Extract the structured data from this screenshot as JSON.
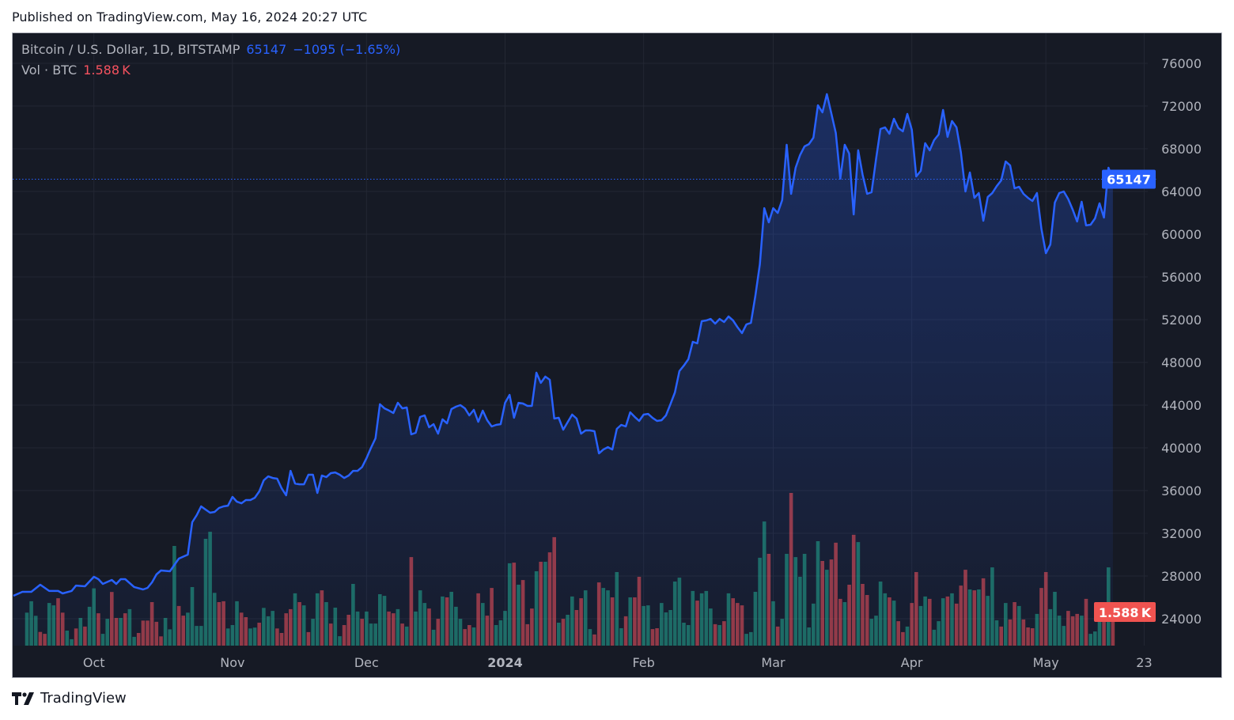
{
  "header": {
    "published": "Published on TradingView.com, May 16, 2024 20:27 UTC"
  },
  "legend": {
    "symbol": "Bitcoin / U.S. Dollar, 1D, BITSTAMP",
    "last": "65147",
    "change": "−1095 (−1.65%)",
    "vol_label": "Vol · BTC",
    "vol_value": "1.588 K"
  },
  "price_label": "65147",
  "vol_badge": "1.588 K",
  "footer": {
    "brand": "TradingView"
  },
  "colors": {
    "line": "#2962ff",
    "up": "#22ab94",
    "down": "#f7525f",
    "bg": "#161a25"
  },
  "chart_data": {
    "type": "line",
    "title": "Bitcoin / U.S. Dollar, 1D, BITSTAMP",
    "x_unit": "days since 2023-09-13",
    "last_price": 65147,
    "ylim": [
      21480,
      78740
    ],
    "y_ticks": [
      24000,
      28000,
      32000,
      36000,
      40000,
      44000,
      48000,
      52000,
      56000,
      60000,
      64000,
      68000,
      72000,
      76000
    ],
    "x_ticks": [
      {
        "day": 18,
        "label": "Oct",
        "bold": false
      },
      {
        "day": 49,
        "label": "Nov",
        "bold": false
      },
      {
        "day": 79,
        "label": "Dec",
        "bold": false
      },
      {
        "day": 110,
        "label": "2024",
        "bold": true
      },
      {
        "day": 141,
        "label": "Feb",
        "bold": false
      },
      {
        "day": 170,
        "label": "Mar",
        "bold": false
      },
      {
        "day": 201,
        "label": "Apr",
        "bold": false
      },
      {
        "day": 231,
        "label": "May",
        "bold": false
      },
      {
        "day": 253,
        "label": "23",
        "bold": false
      }
    ],
    "close": [
      [
        0,
        26150
      ],
      [
        2,
        26520
      ],
      [
        4,
        26520
      ],
      [
        6,
        27190
      ],
      [
        8,
        26600
      ],
      [
        10,
        26600
      ],
      [
        11,
        26370
      ],
      [
        13,
        26600
      ],
      [
        14,
        27110
      ],
      [
        16,
        27040
      ],
      [
        18,
        27930
      ],
      [
        19,
        27710
      ],
      [
        20,
        27260
      ],
      [
        22,
        27630
      ],
      [
        23,
        27260
      ],
      [
        24,
        27710
      ],
      [
        25,
        27710
      ],
      [
        27,
        26970
      ],
      [
        29,
        26740
      ],
      [
        30,
        26890
      ],
      [
        31,
        27410
      ],
      [
        32,
        28150
      ],
      [
        33,
        28520
      ],
      [
        35,
        28450
      ],
      [
        37,
        29630
      ],
      [
        39,
        30000
      ],
      [
        40,
        33040
      ],
      [
        41,
        33700
      ],
      [
        42,
        34520
      ],
      [
        43,
        34220
      ],
      [
        44,
        33930
      ],
      [
        45,
        34000
      ],
      [
        46,
        34370
      ],
      [
        47,
        34520
      ],
      [
        48,
        34590
      ],
      [
        49,
        35410
      ],
      [
        50,
        34960
      ],
      [
        51,
        34810
      ],
      [
        52,
        35110
      ],
      [
        53,
        35110
      ],
      [
        54,
        35330
      ],
      [
        55,
        35930
      ],
      [
        56,
        36960
      ],
      [
        57,
        37330
      ],
      [
        58,
        37180
      ],
      [
        59,
        37110
      ],
      [
        60,
        36220
      ],
      [
        61,
        35560
      ],
      [
        62,
        37850
      ],
      [
        63,
        36660
      ],
      [
        64,
        36590
      ],
      [
        65,
        36590
      ],
      [
        66,
        37480
      ],
      [
        67,
        37480
      ],
      [
        68,
        35780
      ],
      [
        69,
        37410
      ],
      [
        70,
        37260
      ],
      [
        71,
        37630
      ],
      [
        72,
        37700
      ],
      [
        73,
        37480
      ],
      [
        74,
        37180
      ],
      [
        75,
        37410
      ],
      [
        76,
        37850
      ],
      [
        77,
        37850
      ],
      [
        78,
        38200
      ],
      [
        79,
        39040
      ],
      [
        80,
        40000
      ],
      [
        81,
        40890
      ],
      [
        82,
        44080
      ],
      [
        83,
        43700
      ],
      [
        84,
        43500
      ],
      [
        85,
        43260
      ],
      [
        86,
        44220
      ],
      [
        87,
        43700
      ],
      [
        88,
        43780
      ],
      [
        89,
        41260
      ],
      [
        90,
        41410
      ],
      [
        91,
        42890
      ],
      [
        92,
        43040
      ],
      [
        93,
        41930
      ],
      [
        94,
        42220
      ],
      [
        95,
        41330
      ],
      [
        96,
        42670
      ],
      [
        97,
        42300
      ],
      [
        98,
        43630
      ],
      [
        99,
        43850
      ],
      [
        100,
        44000
      ],
      [
        101,
        43700
      ],
      [
        102,
        43040
      ],
      [
        103,
        43560
      ],
      [
        104,
        42440
      ],
      [
        105,
        43480
      ],
      [
        106,
        42590
      ],
      [
        107,
        42000
      ],
      [
        108,
        42150
      ],
      [
        109,
        42220
      ],
      [
        110,
        44220
      ],
      [
        111,
        44960
      ],
      [
        112,
        42820
      ],
      [
        113,
        44220
      ],
      [
        114,
        44150
      ],
      [
        115,
        43930
      ],
      [
        116,
        43930
      ],
      [
        117,
        47040
      ],
      [
        118,
        46080
      ],
      [
        119,
        46670
      ],
      [
        120,
        46370
      ],
      [
        121,
        42740
      ],
      [
        122,
        42820
      ],
      [
        123,
        41700
      ],
      [
        124,
        42400
      ],
      [
        125,
        43110
      ],
      [
        126,
        42740
      ],
      [
        127,
        41330
      ],
      [
        128,
        41630
      ],
      [
        129,
        41630
      ],
      [
        130,
        41560
      ],
      [
        131,
        39480
      ],
      [
        132,
        39850
      ],
      [
        133,
        40070
      ],
      [
        134,
        39850
      ],
      [
        135,
        41780
      ],
      [
        136,
        42150
      ],
      [
        137,
        42000
      ],
      [
        138,
        43330
      ],
      [
        139,
        42900
      ],
      [
        140,
        42520
      ],
      [
        141,
        43110
      ],
      [
        142,
        43180
      ],
      [
        143,
        42800
      ],
      [
        144,
        42520
      ],
      [
        145,
        42590
      ],
      [
        146,
        43040
      ],
      [
        147,
        44100
      ],
      [
        148,
        45190
      ],
      [
        149,
        47190
      ],
      [
        150,
        47700
      ],
      [
        151,
        48300
      ],
      [
        152,
        49930
      ],
      [
        153,
        49780
      ],
      [
        154,
        51850
      ],
      [
        155,
        51930
      ],
      [
        156,
        52070
      ],
      [
        157,
        51630
      ],
      [
        158,
        52070
      ],
      [
        159,
        51780
      ],
      [
        160,
        52300
      ],
      [
        161,
        51930
      ],
      [
        162,
        51300
      ],
      [
        163,
        50740
      ],
      [
        164,
        51560
      ],
      [
        165,
        51700
      ],
      [
        166,
        54220
      ],
      [
        167,
        57180
      ],
      [
        168,
        62440
      ],
      [
        169,
        61110
      ],
      [
        170,
        62440
      ],
      [
        171,
        61990
      ],
      [
        172,
        63190
      ],
      [
        173,
        68370
      ],
      [
        174,
        63780
      ],
      [
        175,
        66220
      ],
      [
        176,
        67400
      ],
      [
        177,
        68220
      ],
      [
        178,
        68440
      ],
      [
        179,
        69040
      ],
      [
        180,
        72070
      ],
      [
        181,
        71410
      ],
      [
        182,
        73110
      ],
      [
        183,
        71300
      ],
      [
        184,
        69480
      ],
      [
        185,
        65190
      ],
      [
        186,
        68370
      ],
      [
        187,
        67550
      ],
      [
        188,
        61850
      ],
      [
        189,
        67850
      ],
      [
        190,
        65560
      ],
      [
        191,
        63780
      ],
      [
        192,
        63930
      ],
      [
        193,
        67040
      ],
      [
        194,
        69850
      ],
      [
        195,
        70000
      ],
      [
        196,
        69410
      ],
      [
        197,
        70810
      ],
      [
        198,
        69930
      ],
      [
        199,
        69630
      ],
      [
        200,
        71260
      ],
      [
        201,
        69780
      ],
      [
        202,
        65410
      ],
      [
        203,
        65930
      ],
      [
        204,
        68520
      ],
      [
        205,
        67850
      ],
      [
        206,
        68810
      ],
      [
        207,
        69330
      ],
      [
        208,
        71630
      ],
      [
        209,
        69110
      ],
      [
        210,
        70590
      ],
      [
        211,
        70000
      ],
      [
        212,
        67630
      ],
      [
        213,
        64000
      ],
      [
        214,
        65780
      ],
      [
        215,
        63410
      ],
      [
        216,
        63850
      ],
      [
        217,
        61260
      ],
      [
        218,
        63480
      ],
      [
        219,
        63850
      ],
      [
        220,
        64500
      ],
      [
        221,
        65040
      ],
      [
        222,
        66810
      ],
      [
        223,
        66440
      ],
      [
        224,
        64300
      ],
      [
        225,
        64440
      ],
      [
        226,
        63780
      ],
      [
        227,
        63400
      ],
      [
        228,
        63110
      ],
      [
        229,
        63850
      ],
      [
        230,
        60520
      ],
      [
        231,
        58220
      ],
      [
        232,
        59040
      ],
      [
        233,
        62960
      ],
      [
        234,
        63850
      ],
      [
        235,
        64000
      ],
      [
        236,
        63300
      ],
      [
        237,
        62300
      ],
      [
        238,
        61190
      ],
      [
        239,
        63040
      ],
      [
        240,
        60820
      ],
      [
        241,
        60890
      ],
      [
        242,
        61480
      ],
      [
        243,
        62890
      ],
      [
        244,
        61560
      ],
      [
        245,
        66220
      ],
      [
        246,
        65147
      ]
    ],
    "volume_unit": "K BTC",
    "volume": [
      1.54,
      2.07,
      1.39,
      0.64,
      0.55,
      1.99,
      1.88,
      2.21,
      1.54,
      0.7,
      0.3,
      0.8,
      1.29,
      0.89,
      1.81,
      2.67,
      1.51,
      0.55,
      1.25,
      2.5,
      1.29,
      1.29,
      1.51,
      1.7,
      0.41,
      0.59,
      1.17,
      1.17,
      2.03,
      1.11,
      0.43,
      1.29,
      0.76,
      4.65,
      1.85,
      1.4,
      1.54,
      2.73,
      0.92,
      0.92,
      4.98,
      5.31,
      2.46,
      2.03,
      2.07,
      0.8,
      0.96,
      2.07,
      1.54,
      1.33,
      0.8,
      0.84,
      1.07,
      1.76,
      1.37,
      1.62,
      0.8,
      0.59,
      1.51,
      1.7,
      2.44,
      2.03,
      1.88,
      0.63,
      1.25,
      2.44,
      2.58,
      2.03,
      1.03,
      1.77,
      0.44,
      0.96,
      1.44,
      2.88,
      1.59,
      1.25,
      1.59,
      1.03,
      1.03,
      2.4,
      2.32,
      1.59,
      1.51,
      1.7,
      1.03,
      0.89,
      4.13,
      1.59,
      2.58,
      1.99,
      1.73,
      0.74,
      1.25,
      2.29,
      2.25,
      2.51,
      1.81,
      1.25,
      0.77,
      0.96,
      0.85,
      2.44,
      1.99,
      1.4,
      2.69,
      0.96,
      1.18,
      1.62,
      3.84,
      3.87,
      2.84,
      3.06,
      1.0,
      1.73,
      3.47,
      3.91,
      3.91,
      4.35,
      5.06,
      1.07,
      1.25,
      1.44,
      2.29,
      1.66,
      2.21,
      2.58,
      0.77,
      0.52,
      2.95,
      2.69,
      2.58,
      2.25,
      3.43,
      0.81,
      1.37,
      2.25,
      2.25,
      3.21,
      1.85,
      1.88,
      0.77,
      0.81,
      1.99,
      1.55,
      1.66,
      2.99,
      3.17,
      1.07,
      0.96,
      2.55,
      2.1,
      2.44,
      2.55,
      1.73,
      1.0,
      0.96,
      1.14,
      2.44,
      2.21,
      1.99,
      1.88,
      0.55,
      0.63,
      2.51,
      4.1,
      5.79,
      4.28,
      2.07,
      0.89,
      1.25,
      4.28,
      7.12,
      4.13,
      3.21,
      4.28,
      0.85,
      1.96,
      4.87,
      3.95,
      3.54,
      4.02,
      4.8,
      2.18,
      2.03,
      2.84,
      5.17,
      4.83,
      2.88,
      2.36,
      1.25,
      1.4,
      2.99,
      2.44,
      2.25,
      2.1,
      1.14,
      0.63,
      0.89,
      1.99,
      3.43,
      1.85,
      2.29,
      2.18,
      0.74,
      1.14,
      2.21,
      2.29,
      2.44,
      1.96,
      2.8,
      3.54,
      2.62,
      2.58,
      2.62,
      3.14,
      2.32,
      3.65,
      1.18,
      0.89,
      1.99,
      1.22,
      2.03,
      1.85,
      1.22,
      0.85,
      0.81,
      1.48,
      2.69,
      3.43,
      1.7,
      2.51,
      1.4,
      0.92,
      1.62,
      1.37,
      1.48,
      1.4,
      2.18,
      0.55,
      0.66,
      1.81,
      1.55,
      3.65,
      1.588
    ],
    "volume_direction": [
      "uuudduuddu",
      "ududuuduud",
      "duduuddddd",
      "duuudduuuu",
      "uuudduuudd",
      "uuduuudddd",
      "ududuududu",
      "udduuduuuuud",
      "dududuuudu",
      "duduuuddud",
      "udduuuudud",
      "ddududdudu",
      "udduudduud",
      "uududduudd",
      "uuuuuuuudu",
      "uudududddu",
      "uuu",
      "ududuuduuu",
      "uuududddud",
      "dudduuuudu",
      "ddudduuduu",
      "ududddudud",
      "uuududdudd",
      "dudduuuudd",
      "duduuudud"
    ]
  }
}
